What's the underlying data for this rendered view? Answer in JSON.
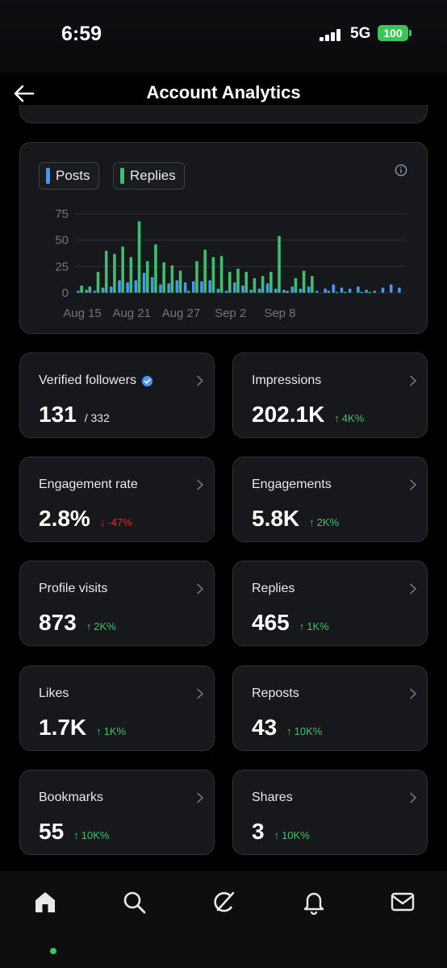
{
  "status_bar": {
    "time": "6:59",
    "network": "5G",
    "battery": "100"
  },
  "header": {
    "title": "Account Analytics"
  },
  "chart_data": {
    "type": "bar",
    "legend": [
      {
        "name": "Posts",
        "color": "#4a95f0"
      },
      {
        "name": "Replies",
        "color": "#3fbf6b"
      }
    ],
    "y_ticks": [
      "0",
      "25",
      "50",
      "75"
    ],
    "ylim": [
      0,
      75
    ],
    "x_tick_labels": [
      "Aug 15",
      "Aug 21",
      "Aug 27",
      "Sep 2",
      "Sep 8"
    ],
    "series": [
      {
        "name": "Posts",
        "values": [
          2,
          3,
          2,
          5,
          6,
          12,
          10,
          12,
          19,
          15,
          8,
          9,
          12,
          10,
          11,
          11,
          12,
          4,
          2,
          10,
          7,
          3,
          4,
          9,
          4,
          3,
          6,
          4,
          6,
          2,
          4,
          8,
          5,
          4,
          6,
          3,
          2,
          5,
          8,
          5
        ]
      },
      {
        "name": "Replies",
        "values": [
          7,
          6,
          20,
          40,
          37,
          44,
          34,
          68,
          30,
          46,
          29,
          26,
          21,
          2,
          30,
          41,
          34,
          35,
          20,
          23,
          20,
          14,
          16,
          20,
          54,
          2,
          14,
          21,
          16,
          0,
          2,
          1,
          1,
          0,
          1,
          1,
          0,
          0,
          0,
          0
        ]
      }
    ]
  },
  "stats": [
    {
      "label": "Verified followers",
      "value": "131",
      "sub": "/ 332"
    },
    {
      "label": "Impressions",
      "value": "202.1K",
      "trend": "4K%",
      "direction": "up"
    },
    {
      "label": "Engagement rate",
      "value": "2.8%",
      "trend": "-47%",
      "direction": "down"
    },
    {
      "label": "Engagements",
      "value": "5.8K",
      "trend": "2K%",
      "direction": "up"
    },
    {
      "label": "Profile visits",
      "value": "873",
      "trend": "2K%",
      "direction": "up"
    },
    {
      "label": "Replies",
      "value": "465",
      "trend": "1K%",
      "direction": "up"
    },
    {
      "label": "Likes",
      "value": "1.7K",
      "trend": "1K%",
      "direction": "up"
    },
    {
      "label": "Reposts",
      "value": "43",
      "trend": "10K%",
      "direction": "up"
    },
    {
      "label": "Bookmarks",
      "value": "55",
      "trend": "10K%",
      "direction": "up"
    },
    {
      "label": "Shares",
      "value": "3",
      "trend": "10K%",
      "direction": "up"
    }
  ],
  "icons": {
    "back": "arrow-left-icon",
    "info": "info-icon",
    "verified": "verified-badge-icon",
    "nav": [
      "home-icon",
      "search-icon",
      "grok-icon",
      "bell-icon",
      "mail-icon"
    ]
  }
}
